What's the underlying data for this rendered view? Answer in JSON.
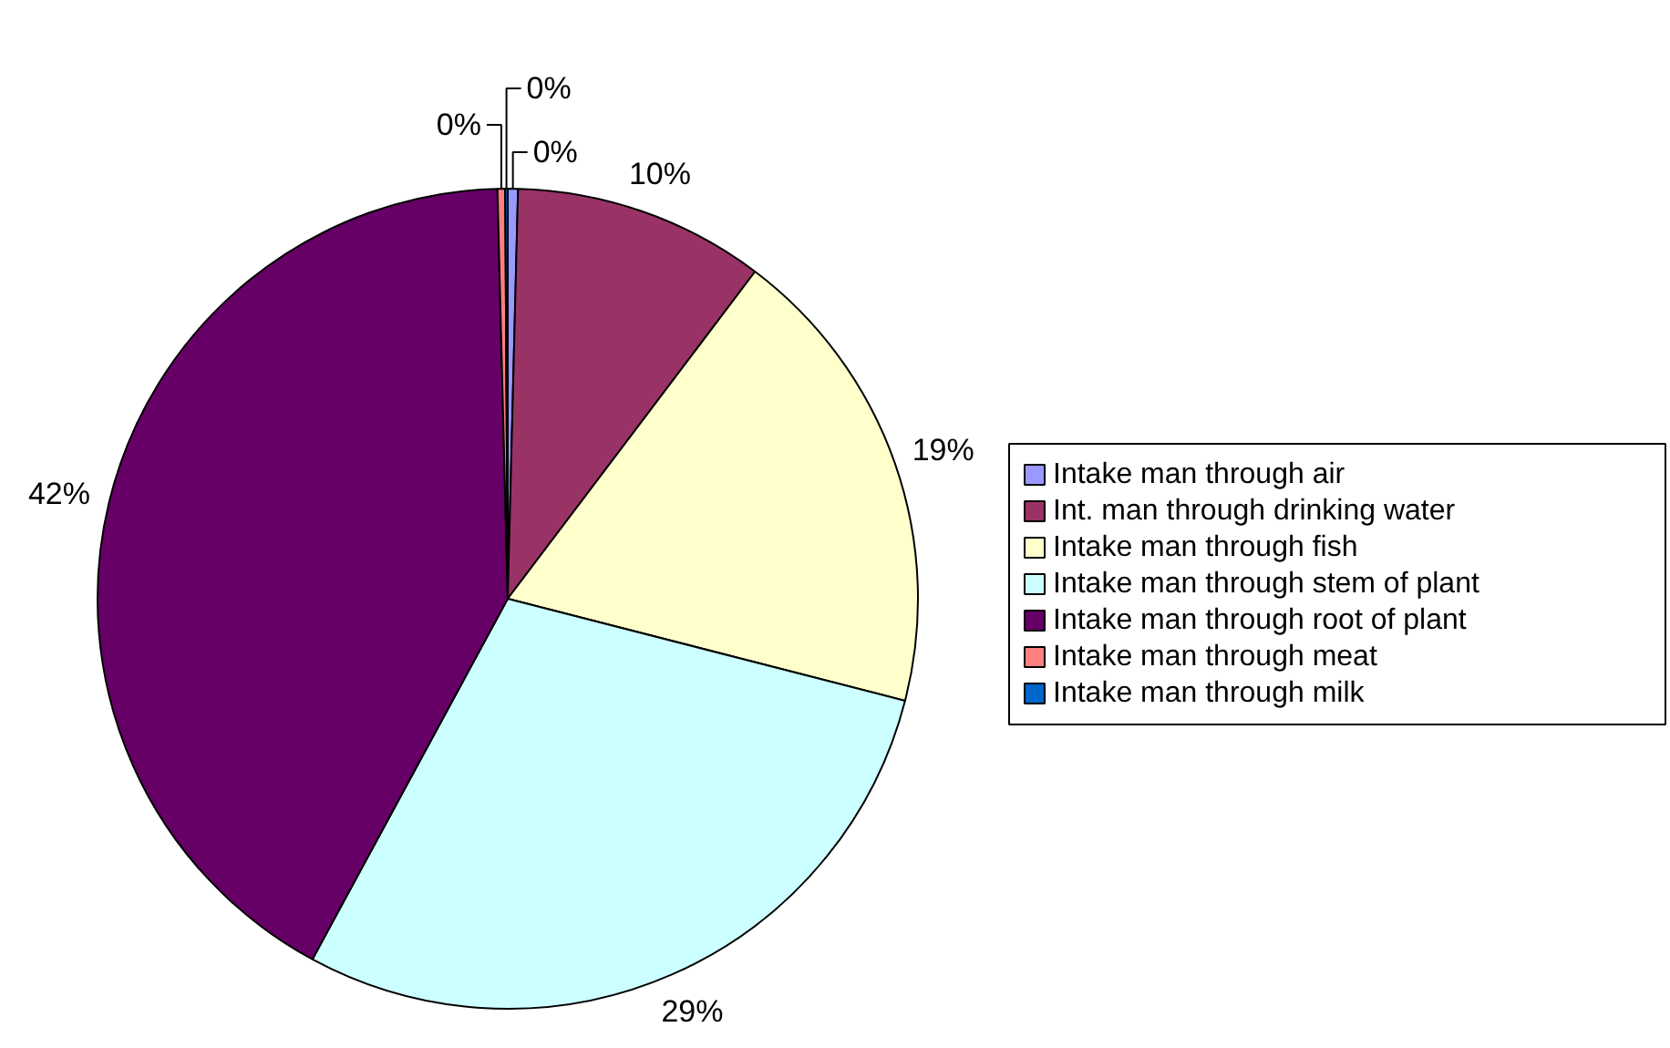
{
  "chart_data": {
    "type": "pie",
    "categories": [
      "Intake man through air",
      "Int. man through drinking water",
      "Intake man through fish",
      "Intake man through stem of plant",
      "Intake man through root of plant",
      "Intake man through meat",
      "Intake man through milk"
    ],
    "values": [
      0.4,
      9.9,
      18.7,
      28.9,
      41.7,
      0.3,
      0.1
    ],
    "colors": [
      "#9999ff",
      "#993366",
      "#ffffcc",
      "#ccffff",
      "#660066",
      "#ff8080",
      "#0066cc"
    ],
    "value_labels": [
      "0%",
      "10%",
      "19%",
      "29%",
      "42%",
      "0%",
      "0%"
    ],
    "legend": "right"
  }
}
